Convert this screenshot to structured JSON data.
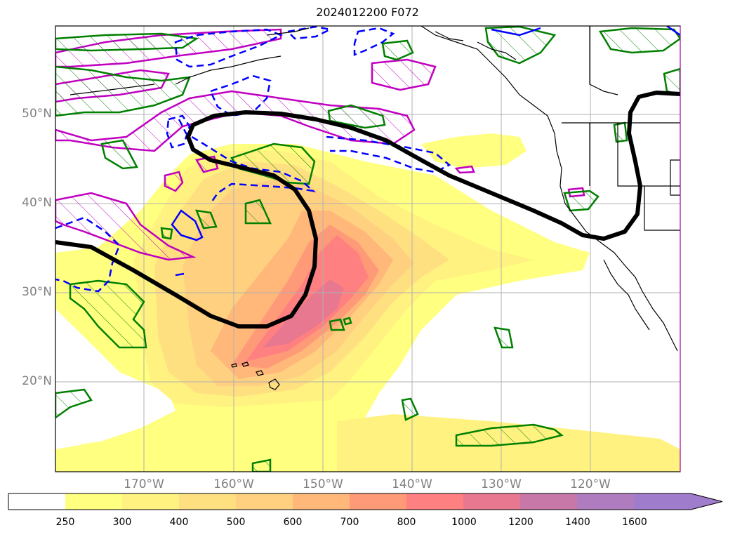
{
  "title": "2024012200 F072",
  "axes": {
    "lon_labels": [
      "170°W",
      "160°W",
      "150°W",
      "140°W",
      "130°W",
      "120°W"
    ],
    "lat_labels": [
      "50°N",
      "40°N",
      "30°N",
      "20°N"
    ],
    "lon_range": [
      -180,
      -110
    ],
    "lat_range": [
      10,
      60
    ],
    "grid": true
  },
  "colorbar": {
    "levels": [
      "250",
      "300",
      "400",
      "500",
      "600",
      "700",
      "800",
      "1000",
      "1200",
      "1400",
      "1600"
    ],
    "colors": [
      "#ffffff",
      "#ffff80",
      "#fff280",
      "#ffe080",
      "#ffd080",
      "#ffb87a",
      "#ff9a78",
      "#ff8080",
      "#e87890",
      "#c878a8",
      "#b07cc0",
      "#a07ccc"
    ],
    "extend": "max"
  },
  "contour_colors": {
    "thick": "#000000",
    "magenta": "#c000c0",
    "green": "#008000",
    "blue": "#0000ff"
  }
}
